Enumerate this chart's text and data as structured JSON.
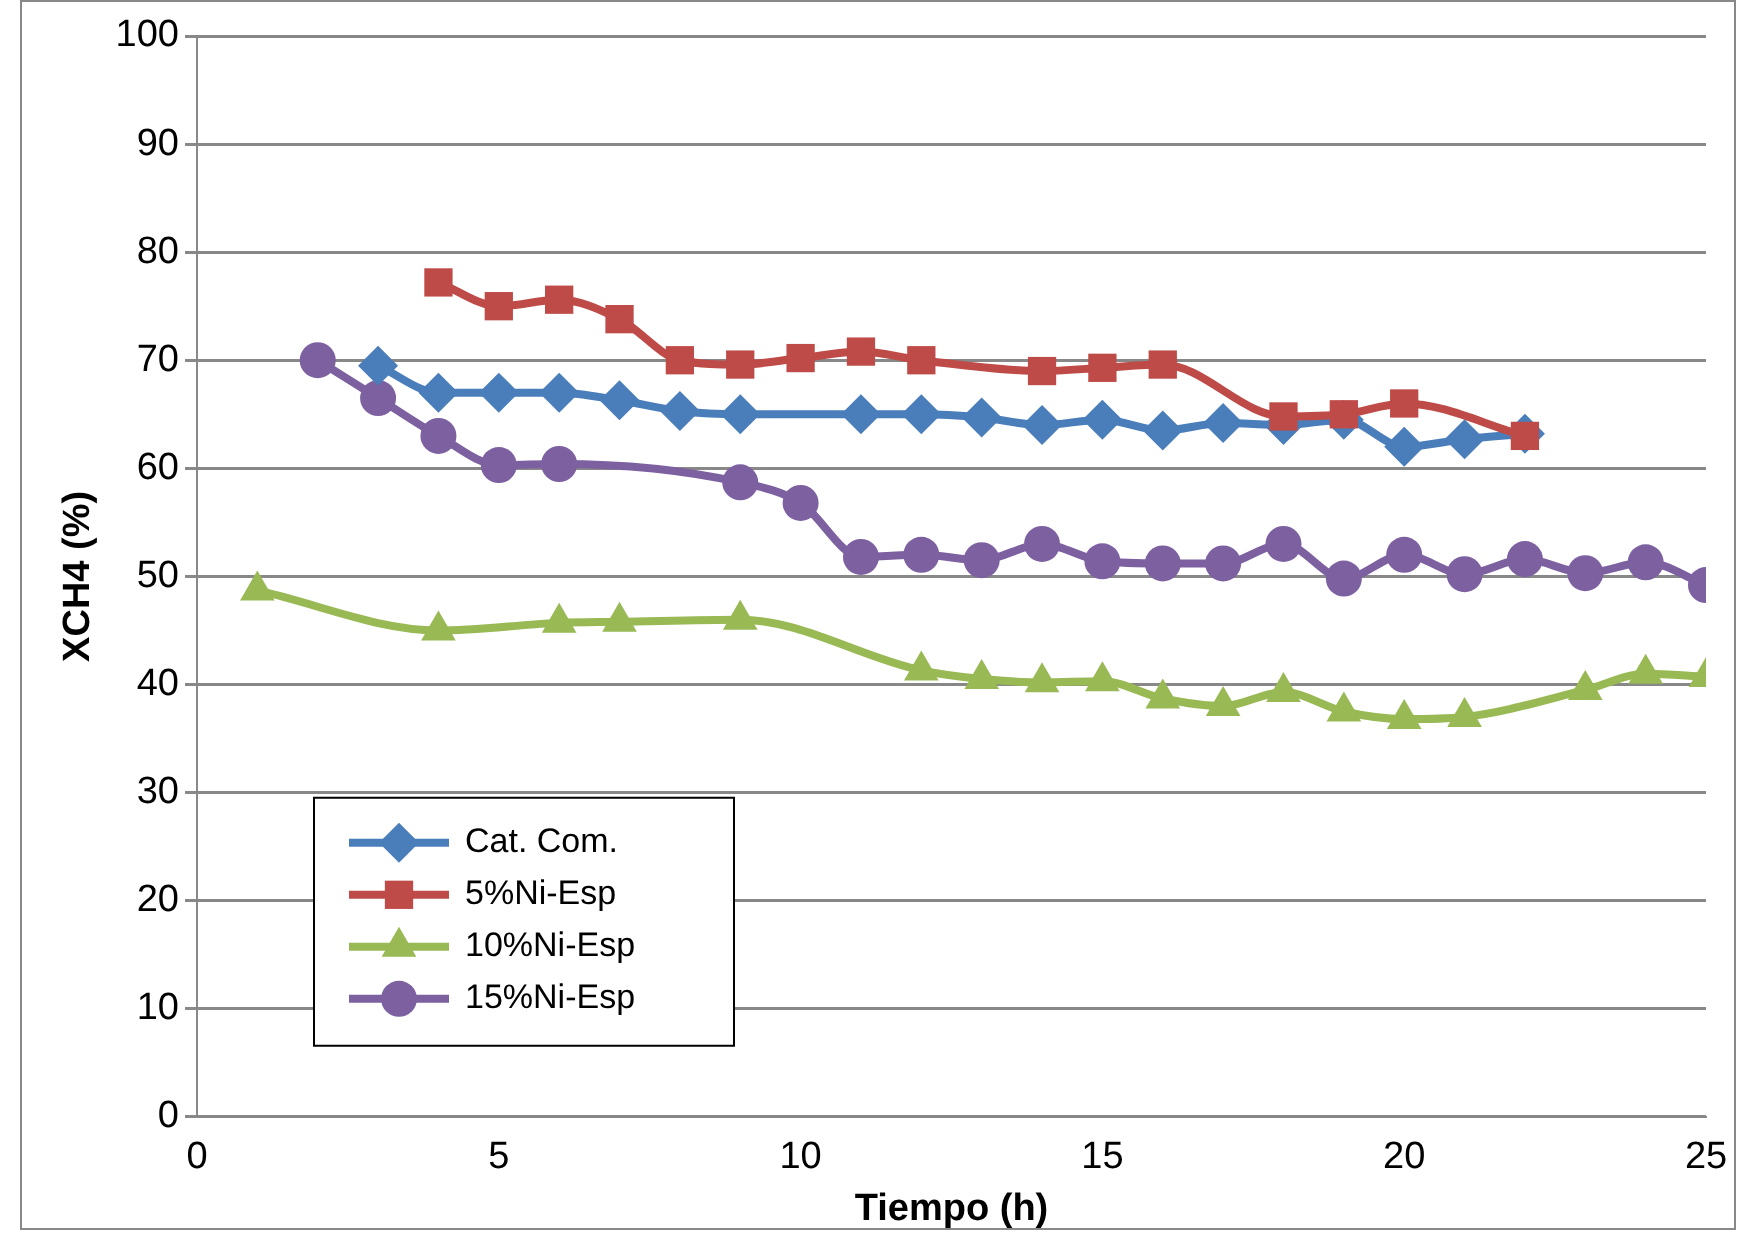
{
  "chart_data": {
    "type": "line",
    "xlabel": "Tiempo (h)",
    "ylabel": "XCH4 (%)",
    "xlim": [
      0,
      25
    ],
    "xticks": [
      0,
      5,
      10,
      15,
      20,
      25
    ],
    "ylim": [
      0,
      100
    ],
    "yticks": [
      0,
      10,
      20,
      30,
      40,
      50,
      60,
      70,
      80,
      90,
      100
    ],
    "grid": "y",
    "legend": "bottom left",
    "series": [
      {
        "name": "Cat. Com.",
        "color": "#4a7ebb",
        "marker": "diamond",
        "x": [
          3,
          4,
          5,
          6,
          7,
          8,
          9,
          11,
          12,
          13,
          14,
          15,
          16,
          17,
          18,
          19,
          20,
          21,
          22
        ],
        "values": [
          69.5,
          67,
          67,
          67,
          66.3,
          65.3,
          65,
          65,
          65,
          64.7,
          64,
          64.5,
          63.5,
          64.2,
          64,
          64.5,
          62,
          62.7,
          63.2
        ]
      },
      {
        "name": "5%Ni-Esp",
        "color": "#be4b48",
        "marker": "square",
        "x": [
          4,
          5,
          6,
          7,
          8,
          9,
          10,
          11,
          12,
          14,
          15,
          16,
          18,
          19,
          20,
          22
        ],
        "values": [
          77.2,
          75,
          75.6,
          73.8,
          70,
          69.6,
          70.2,
          70.8,
          70,
          69,
          69.3,
          69.6,
          64.8,
          65,
          66,
          63
        ]
      },
      {
        "name": "10%Ni-Esp",
        "color": "#98b954",
        "marker": "triangle",
        "x": [
          1,
          4,
          6,
          7,
          9,
          12,
          13,
          14,
          15,
          16,
          17,
          18,
          19,
          20,
          21,
          23,
          24,
          25
        ],
        "values": [
          48.7,
          45,
          45.7,
          45.8,
          46,
          41.3,
          40.5,
          40.2,
          40.3,
          38.7,
          38,
          39.3,
          37.5,
          36.8,
          37,
          39.5,
          41,
          40.7
        ]
      },
      {
        "name": "15%Ni-Esp",
        "color": "#7d60a0",
        "marker": "circle",
        "x": [
          2,
          3,
          4,
          5,
          6,
          9,
          10,
          11,
          12,
          13,
          14,
          15,
          16,
          17,
          18,
          19,
          20,
          21,
          22,
          23,
          24,
          25
        ],
        "values": [
          70,
          66.5,
          63,
          60.3,
          60.4,
          58.7,
          56.8,
          51.8,
          52,
          51.5,
          53,
          51.4,
          51.2,
          51.2,
          53,
          49.8,
          52,
          50.2,
          51.6,
          50.3,
          51.3,
          49.2
        ]
      }
    ]
  }
}
